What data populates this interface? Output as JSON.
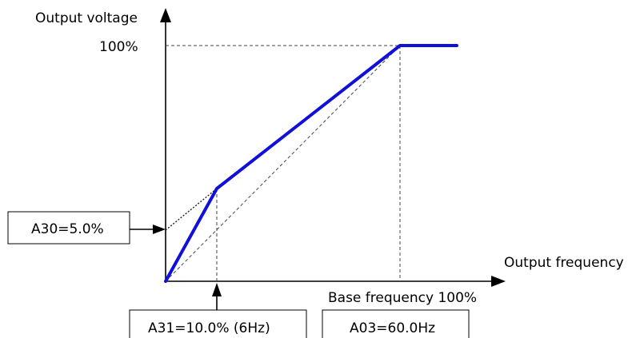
{
  "axes": {
    "y_label": "Output voltage",
    "x_label": "Output frequency",
    "y_tick_label": "100%",
    "x_tick_label": "Base frequency 100%"
  },
  "boxes": {
    "a30": "A30=5.0%",
    "a31": "A31=10.0% (6Hz)",
    "a03": "A03=60.0Hz"
  },
  "colors": {
    "curve": "#1010d8",
    "axis": "#000000",
    "guide": "#444444"
  }
}
